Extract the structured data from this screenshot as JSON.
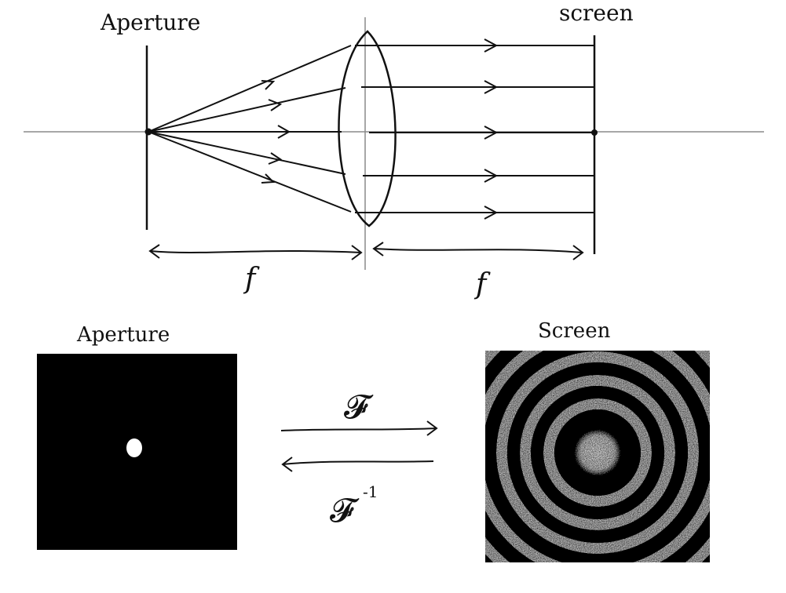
{
  "optics": {
    "aperture_label": "Aperture",
    "screen_label": "screen",
    "focal_left": "f",
    "focal_right": "f"
  },
  "transform": {
    "aperture_label": "Aperture",
    "screen_label": "Screen",
    "forward": "𝓕",
    "inverse": "𝓕",
    "inverse_superscript": "-1"
  },
  "colors": {
    "ink": "#111111",
    "axis": "#888888",
    "panel": "#000000",
    "light": "#ffffff"
  }
}
